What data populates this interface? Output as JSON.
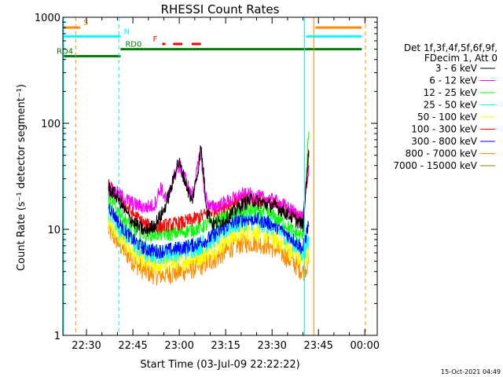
{
  "chart_data": {
    "type": "line",
    "title": "RHESSI Count Rates",
    "xlabel": "Start Time (03-Jul-09 22:22:22)",
    "ylabel": "Count Rate (s⁻¹ detector segment⁻¹)",
    "xlim": [
      "22:22:22",
      "00:04:00"
    ],
    "ylim": [
      1,
      1000
    ],
    "yscale": "log",
    "xticks": [
      "22:30",
      "22:45",
      "23:00",
      "23:15",
      "23:30",
      "23:45",
      "00:00"
    ],
    "yticks": [
      "1",
      "10",
      "100",
      "1000"
    ],
    "legend_header": [
      "Det 1f,3f,4f,5f,6f,9f,",
      "FDecim 1, Att 0"
    ],
    "legend_position": "right",
    "series": [
      {
        "name": "3 - 6 keV",
        "color": "#000000",
        "x": [
          "22:37",
          "22:40",
          "22:43",
          "22:46",
          "22:49",
          "22:52",
          "22:55",
          "22:58",
          "22:59",
          "23:00",
          "23:02",
          "23:04",
          "23:06",
          "23:07",
          "23:08",
          "23:09",
          "23:11",
          "23:14",
          "23:17",
          "23:20",
          "23:23",
          "23:26",
          "23:29",
          "23:32",
          "23:35",
          "23:38",
          "23:40",
          "23:42"
        ],
        "values": [
          25,
          20,
          14,
          11,
          9.5,
          11,
          15,
          28,
          40,
          42,
          28,
          18,
          35,
          60,
          30,
          15,
          11,
          12,
          14,
          17,
          19,
          18,
          17,
          16,
          14,
          12,
          11,
          60
        ]
      },
      {
        "name": "6 - 12 keV",
        "color": "#ff00ff",
        "x": [
          "22:37",
          "22:40",
          "22:43",
          "22:46",
          "22:49",
          "22:52",
          "22:54",
          "22:56",
          "22:58",
          "23:00",
          "23:02",
          "23:04",
          "23:06",
          "23:07",
          "23:08",
          "23:10",
          "23:13",
          "23:17",
          "23:20",
          "23:23",
          "23:26",
          "23:29",
          "23:32",
          "23:35",
          "23:38",
          "23:40",
          "23:42"
        ],
        "values": [
          24,
          22,
          19,
          17,
          16,
          17,
          25,
          18,
          30,
          40,
          30,
          20,
          38,
          57,
          22,
          16,
          17,
          19,
          21,
          21,
          20,
          19,
          18,
          16,
          14,
          13,
          40
        ]
      },
      {
        "name": "12 - 25 keV",
        "color": "#00ff00",
        "x": [
          "22:37",
          "22:41",
          "22:45",
          "22:49",
          "22:53",
          "22:57",
          "23:01",
          "23:05",
          "23:09",
          "23:13",
          "23:17",
          "23:21",
          "23:25",
          "23:29",
          "23:33",
          "23:37",
          "23:40",
          "23:42"
        ],
        "values": [
          20,
          14,
          10,
          9,
          9,
          9,
          9.5,
          10,
          11,
          12.5,
          14,
          15,
          15,
          14,
          12,
          9.5,
          8.5,
          100
        ]
      },
      {
        "name": "25 - 50 keV",
        "color": "#00ffff",
        "x": [
          "22:37",
          "22:41",
          "22:45",
          "22:49",
          "22:53",
          "22:57",
          "23:01",
          "23:05",
          "23:09",
          "23:13",
          "23:17",
          "23:21",
          "23:25",
          "23:29",
          "23:33",
          "23:37",
          "23:40",
          "23:42"
        ],
        "values": [
          15,
          10.5,
          7.5,
          6,
          5.8,
          6,
          6.3,
          6.8,
          7.6,
          9,
          11,
          12,
          12,
          11,
          9.5,
          7.5,
          6,
          8
        ]
      },
      {
        "name": "50 - 100 keV",
        "color": "#ffff00",
        "x": [
          "22:37",
          "22:41",
          "22:45",
          "22:49",
          "22:53",
          "22:57",
          "23:01",
          "23:05",
          "23:09",
          "23:13",
          "23:17",
          "23:21",
          "23:25",
          "23:29",
          "23:33",
          "23:37",
          "23:40",
          "23:42"
        ],
        "values": [
          12,
          8.5,
          6,
          4.8,
          4.6,
          4.8,
          5,
          5.4,
          6,
          7,
          8.5,
          9.5,
          9.5,
          8.7,
          7.5,
          6,
          5,
          6
        ]
      },
      {
        "name": "100 - 300 keV",
        "color": "#ff0000",
        "x": [
          "22:37",
          "22:41",
          "22:45",
          "22:49",
          "22:53",
          "22:57",
          "23:01",
          "23:05",
          "23:09",
          "23:13",
          "23:17",
          "23:21",
          "23:25",
          "23:29",
          "23:33",
          "23:37",
          "23:40",
          "23:42"
        ],
        "values": [
          26,
          19,
          14,
          11,
          10.5,
          11,
          11.5,
          12.5,
          14,
          16,
          18,
          19,
          19,
          18,
          16,
          14,
          12,
          60
        ]
      },
      {
        "name": "300 - 800 keV",
        "color": "#0000ff",
        "x": [
          "22:37",
          "22:41",
          "22:45",
          "22:49",
          "22:53",
          "22:57",
          "23:01",
          "23:05",
          "23:09",
          "23:13",
          "23:17",
          "23:21",
          "23:25",
          "23:29",
          "23:33",
          "23:37",
          "23:40",
          "23:42"
        ],
        "values": [
          17,
          11,
          8,
          6.5,
          6.2,
          6.4,
          6.7,
          7.2,
          8,
          9.5,
          11.5,
          12.5,
          12.5,
          11.5,
          10,
          8,
          6.5,
          12
        ]
      },
      {
        "name": "800 - 7000 keV",
        "color": "#ff8c00",
        "x": [
          "22:37",
          "22:41",
          "22:45",
          "22:49",
          "22:53",
          "22:57",
          "23:01",
          "23:05",
          "23:09",
          "23:13",
          "23:17",
          "23:21",
          "23:25",
          "23:29",
          "23:33",
          "23:37",
          "23:40",
          "23:42"
        ],
        "values": [
          10,
          7,
          5,
          4,
          3.7,
          3.8,
          4,
          4.3,
          4.8,
          5.6,
          6.8,
          7.5,
          7.5,
          7,
          6,
          4.8,
          4,
          5
        ]
      },
      {
        "name": "7000 - 15000 keV",
        "color": "#808000",
        "x": [],
        "values": []
      }
    ],
    "segments": [
      {
        "label": "S",
        "color": "#ff8c00",
        "ranges": [
          [
            "22:22:22",
            "22:28"
          ],
          [
            "23:44",
            "23:59"
          ]
        ],
        "level": 800
      },
      {
        "label": "N",
        "color": "#00ffff",
        "ranges": [
          [
            "22:22:22",
            "22:41"
          ],
          [
            "23:41",
            "23:59"
          ]
        ],
        "level": 660
      },
      {
        "label": "F",
        "color": "#ff0000",
        "ranges": [
          [
            "22:54:30",
            "22:55:30"
          ],
          [
            "22:58",
            "23:01"
          ],
          [
            "23:04",
            "23:07"
          ]
        ],
        "level": 560
      },
      {
        "label": "RD0",
        "color": "#008000",
        "ranges": [
          [
            "22:41",
            "23:59"
          ]
        ],
        "level": 500
      },
      {
        "label": "RD4",
        "color": "#008000",
        "ranges": [
          [
            "22:22:22",
            "22:41"
          ]
        ],
        "level": 430
      }
    ],
    "vlines": [
      {
        "t": "22:22:22",
        "color": "#00ffff",
        "style": "solid"
      },
      {
        "t": "22:26:30",
        "color": "#ff8c00",
        "style": "dashed"
      },
      {
        "t": "22:40:30",
        "color": "#00ffff",
        "style": "dashed"
      },
      {
        "t": "23:40:30",
        "color": "#00ffff",
        "style": "solid"
      },
      {
        "t": "23:43:30",
        "color": "#ff8c00",
        "style": "solid"
      },
      {
        "t": "00:00:30",
        "color": "#00ffff",
        "style": "dashed"
      },
      {
        "t": "00:00:50",
        "color": "#ff8c00",
        "style": "dashed"
      }
    ],
    "timestamp": "15-Oct-2021 04:49"
  }
}
